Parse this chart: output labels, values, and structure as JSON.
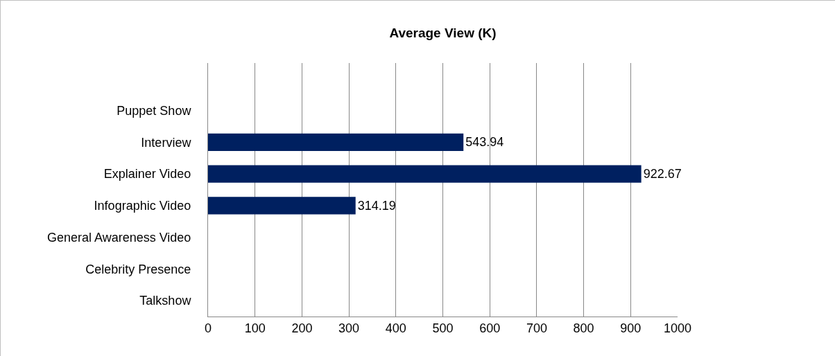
{
  "chart_data": {
    "type": "bar",
    "orientation": "horizontal",
    "title": "Average View (K)",
    "categories": [
      null,
      "Puppet Show",
      "Interview",
      "Explainer Video",
      "Infographic Video",
      "General Awareness Video",
      "Celebrity Presence",
      "Talkshow"
    ],
    "series": [
      {
        "color": "#002060",
        "values": [
          null,
          null,
          543.94,
          922.67,
          314.19,
          null,
          null,
          null
        ]
      }
    ],
    "xlim": [
      0,
      1000
    ],
    "xticks": [
      0,
      100,
      200,
      300,
      400,
      500,
      600,
      700,
      800,
      900,
      1000
    ],
    "grid": "x",
    "data_labels": true
  }
}
